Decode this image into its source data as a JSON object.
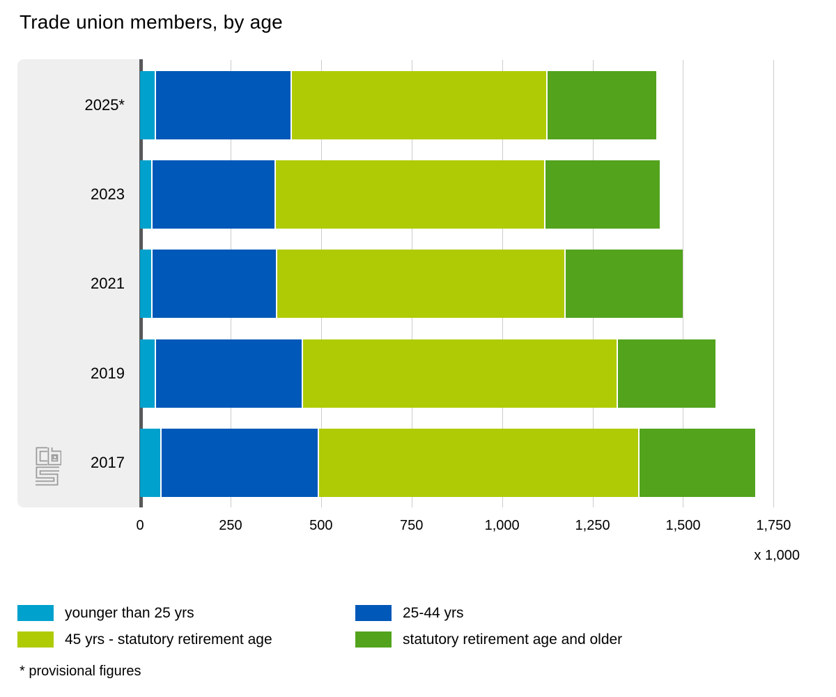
{
  "title": "Trade union members, by age",
  "footnote": "* provisional figures",
  "axis": {
    "unit_label": "x 1,000",
    "tick_values": [
      0,
      250,
      500,
      750,
      1000,
      1250,
      1500,
      1750
    ],
    "tick_labels": [
      "0",
      "250",
      "500",
      "750",
      "1,000",
      "1,250",
      "1,500",
      "1,750"
    ],
    "max": 1750
  },
  "colors": {
    "panel_bg": "#efefef",
    "axis_line": "#58585a",
    "gridline": "#cbcbcb",
    "separator": "#ffffff",
    "logo_gray": "#9a9a99"
  },
  "chart_data": {
    "type": "bar",
    "orientation": "horizontal",
    "stacked": true,
    "title": "Trade union members, by age",
    "xlabel": "x 1,000",
    "xlim": [
      0,
      1750
    ],
    "grid": true,
    "legend_position": "bottom",
    "categories": [
      "2025*",
      "2023",
      "2021",
      "2019",
      "2017"
    ],
    "series": [
      {
        "name": "younger than 25 yrs",
        "color": "#00a1cd",
        "values": [
          45,
          35,
          35,
          45,
          60
        ]
      },
      {
        "name": "25-44 yrs",
        "color": "#0058b8",
        "values": [
          375,
          340,
          345,
          405,
          435
        ]
      },
      {
        "name": "45 yrs - statutory retirement age",
        "color": "#afcb05",
        "values": [
          705,
          745,
          795,
          870,
          885
        ]
      },
      {
        "name": "statutory retirement age and older",
        "color": "#53a31d",
        "values": [
          300,
          315,
          325,
          270,
          320
        ]
      }
    ],
    "totals": [
      1425,
      1435,
      1500,
      1590,
      1700
    ]
  },
  "logo": {
    "name": "cbs-logo"
  }
}
